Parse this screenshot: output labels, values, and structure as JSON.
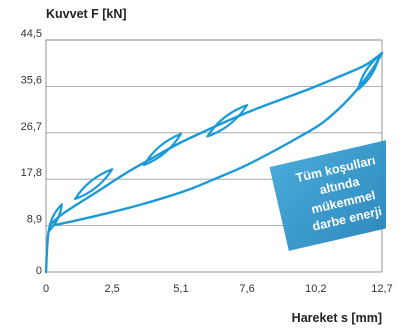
{
  "chart_data": {
    "type": "line",
    "ylabel": "Kuvvet F [kN]",
    "xlabel": "Hareket s [mm]",
    "xlim": [
      0,
      12.7
    ],
    "ylim": [
      0,
      44.5
    ],
    "x_ticks": [
      "0",
      "2,5",
      "5,1",
      "7,6",
      "10,2",
      "12,7"
    ],
    "y_ticks": [
      "0",
      "8,9",
      "17,8",
      "26,7",
      "35,6",
      "44,5"
    ],
    "x_tick_values": [
      0,
      2.5,
      5.1,
      7.6,
      10.2,
      12.7
    ],
    "y_tick_values": [
      0,
      8.9,
      17.8,
      26.7,
      35.6,
      44.5
    ],
    "grid": "horizontal",
    "line_color": "#1a9ad6",
    "series": [
      {
        "curve": "upper",
        "x": [
          0,
          0.1,
          0.4,
          1.0,
          2.0,
          3.0,
          4.0,
          5.0,
          6.0,
          7.0,
          8.0,
          9.0,
          10.0,
          11.0,
          12.0,
          12.5,
          12.7
        ],
        "y": [
          0,
          7.8,
          10.2,
          12.4,
          15.6,
          18.9,
          21.8,
          24.6,
          27.0,
          29.3,
          31.4,
          33.3,
          35.2,
          37.3,
          39.5,
          41.2,
          42.0
        ]
      },
      {
        "curve": "lower",
        "x": [
          12.7,
          12.3,
          11.5,
          10.5,
          9.5,
          8.5,
          7.5,
          6.5,
          5.5,
          4.5,
          3.5,
          2.5,
          1.5,
          0.8,
          0.3
        ],
        "y": [
          42.0,
          38.6,
          33.5,
          28.8,
          25.7,
          22.9,
          20.3,
          18.1,
          16.0,
          14.3,
          12.8,
          11.5,
          10.3,
          9.5,
          9.0
        ]
      }
    ],
    "loops": [
      {
        "x_high": 0.6,
        "y_high": 13.0,
        "x_low": 0.1,
        "y_low": 7.8
      },
      {
        "x_high": 2.5,
        "y_high": 19.7,
        "x_low": 1.1,
        "y_low": 14.0
      },
      {
        "x_high": 5.1,
        "y_high": 26.5,
        "x_low": 3.7,
        "y_low": 20.5
      },
      {
        "x_high": 7.6,
        "y_high": 32.0,
        "x_low": 6.1,
        "y_low": 26.0
      },
      {
        "x_high": 12.6,
        "y_high": 41.5,
        "x_low": 11.8,
        "y_low": 35.0
      }
    ]
  },
  "badge": {
    "lines": [
      "Tüm koşulları",
      "altında",
      "mükemmel",
      "darbe enerji"
    ],
    "color": "#2c8fc4"
  }
}
